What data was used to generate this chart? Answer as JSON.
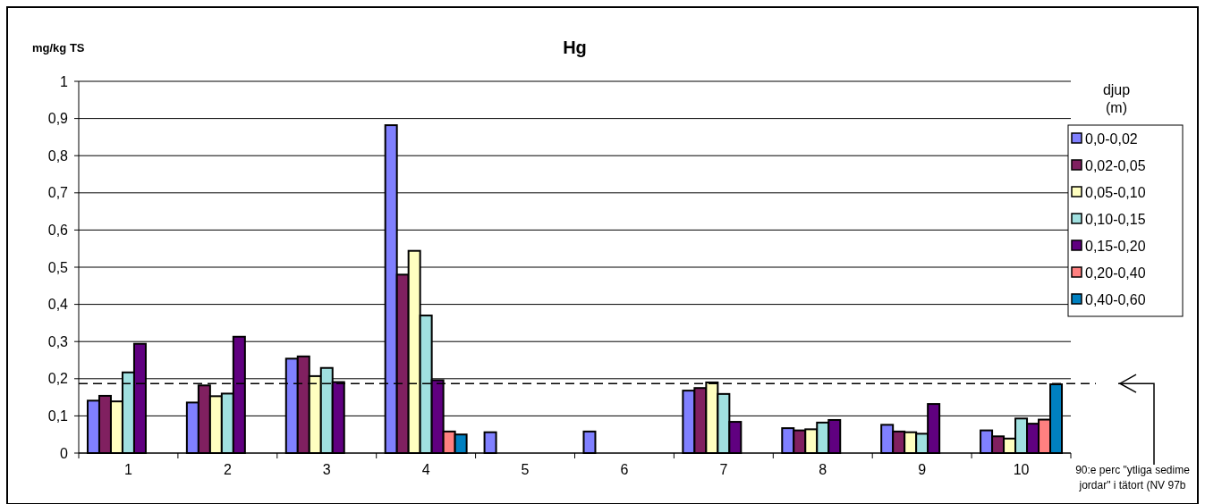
{
  "chart_data": {
    "type": "bar",
    "title": "Hg",
    "ylabel": "mg/kg TS",
    "legend_title": "djup\n(m)",
    "categories": [
      "1",
      "2",
      "3",
      "4",
      "5",
      "6",
      "7",
      "8",
      "9",
      "10"
    ],
    "series": [
      {
        "name": "0,0-0,02",
        "color": "#8080ff",
        "values": [
          0.141,
          0.136,
          0.254,
          0.882,
          0.056,
          0.058,
          0.168,
          0.067,
          0.076,
          0.061
        ]
      },
      {
        "name": "0,02-0,05",
        "color": "#802060",
        "values": [
          0.154,
          0.182,
          0.26,
          0.48,
          null,
          null,
          0.175,
          0.061,
          0.058,
          0.045
        ]
      },
      {
        "name": "0,05-0,10",
        "color": "#ffffc0",
        "values": [
          0.139,
          0.153,
          0.207,
          0.544,
          null,
          null,
          0.19,
          0.064,
          0.056,
          0.039
        ]
      },
      {
        "name": "0,10-0,15",
        "color": "#a0e0e0",
        "values": [
          0.217,
          0.16,
          0.229,
          0.37,
          null,
          null,
          0.159,
          0.082,
          0.052,
          0.093
        ]
      },
      {
        "name": "0,15-0,20",
        "color": "#600080",
        "values": [
          0.294,
          0.313,
          0.191,
          0.196,
          null,
          null,
          0.084,
          0.089,
          0.132,
          0.079
        ]
      },
      {
        "name": "0,20-0,40",
        "color": "#ff8080",
        "values": [
          null,
          null,
          null,
          0.058,
          null,
          null,
          null,
          null,
          null,
          0.09
        ]
      },
      {
        "name": "0,40-0,60",
        "color": "#0080c0",
        "values": [
          null,
          null,
          null,
          0.05,
          null,
          null,
          null,
          null,
          null,
          0.185
        ]
      }
    ],
    "ylim": [
      0,
      1
    ],
    "yticks": [
      {
        "value": 0,
        "label": "0"
      },
      {
        "value": 0.1,
        "label": "0,1"
      },
      {
        "value": 0.2,
        "label": "0,2"
      },
      {
        "value": 0.3,
        "label": "0,3"
      },
      {
        "value": 0.4,
        "label": "0,4"
      },
      {
        "value": 0.5,
        "label": "0,5"
      },
      {
        "value": 0.6,
        "label": "0,6"
      },
      {
        "value": 0.7,
        "label": "0,7"
      },
      {
        "value": 0.8,
        "label": "0,8"
      },
      {
        "value": 0.9,
        "label": "0,9"
      },
      {
        "value": 1,
        "label": "1"
      }
    ],
    "grid": "y",
    "legend": "right",
    "annotations": [
      "90:e perc \"ytliga sedime\njordar\" i tätort (NV 97b"
    ],
    "ref_lines": [
      {
        "axis": "y",
        "value": 0.187,
        "line_style": "dashed",
        "color": "#000000"
      }
    ]
  }
}
